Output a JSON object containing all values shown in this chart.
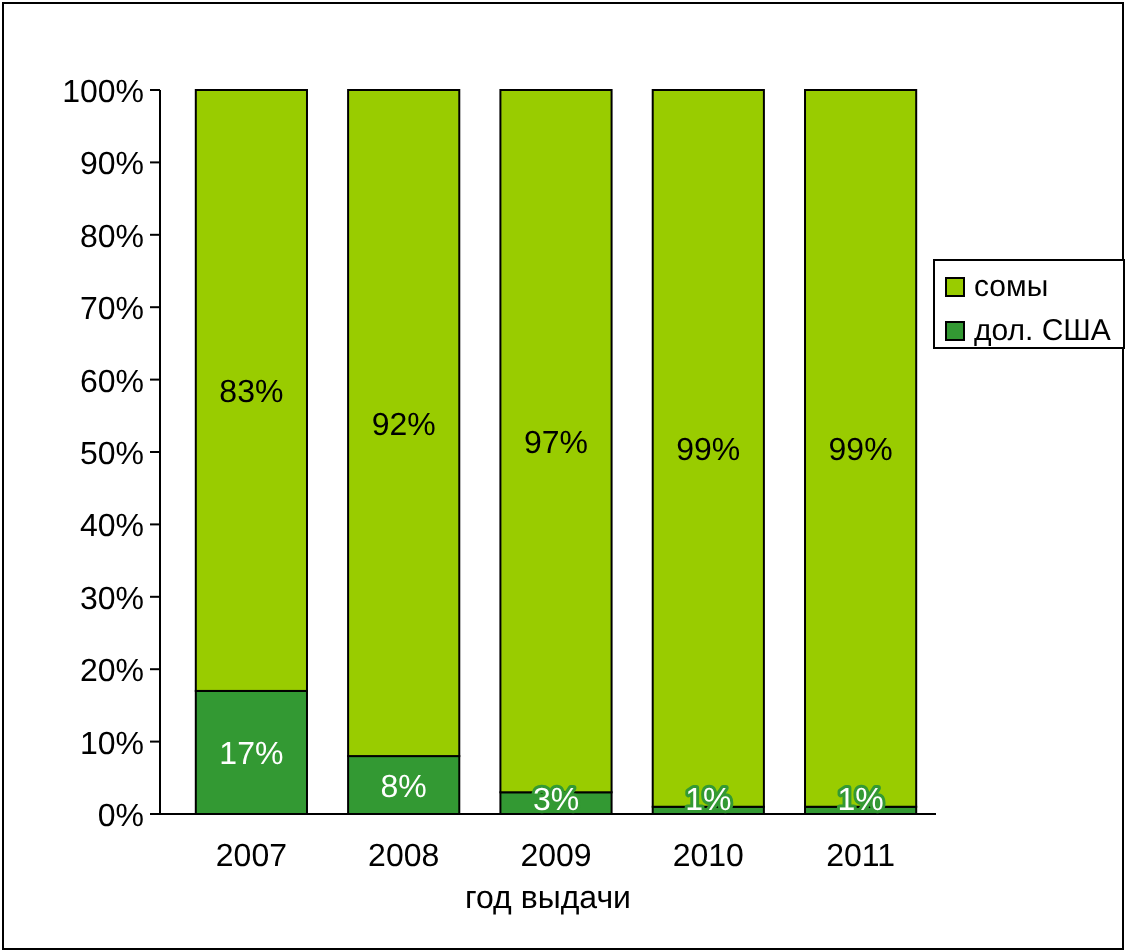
{
  "chart_data": {
    "type": "bar",
    "stacked": true,
    "xlabel": "год выдачи",
    "categories": [
      "2007",
      "2008",
      "2009",
      "2010",
      "2011"
    ],
    "series": [
      {
        "name": "дол. США",
        "color": "#339933",
        "values": [
          17,
          8,
          3,
          1,
          1
        ],
        "value_labels": [
          "17%",
          "8%",
          "3%",
          "1%",
          "1%"
        ]
      },
      {
        "name": "сомы",
        "color": "#99cc00",
        "values": [
          83,
          92,
          97,
          99,
          99
        ],
        "value_labels": [
          "83%",
          "92%",
          "97%",
          "99%",
          "99%"
        ]
      }
    ],
    "ylim": [
      0,
      100
    ],
    "yticks": [
      {
        "value": 0,
        "label": "0%"
      },
      {
        "value": 10,
        "label": "10%"
      },
      {
        "value": 20,
        "label": "20%"
      },
      {
        "value": 30,
        "label": "30%"
      },
      {
        "value": 40,
        "label": "40%"
      },
      {
        "value": 50,
        "label": "50%"
      },
      {
        "value": 60,
        "label": "60%"
      },
      {
        "value": 70,
        "label": "70%"
      },
      {
        "value": 80,
        "label": "80%"
      },
      {
        "value": 90,
        "label": "90%"
      },
      {
        "value": 100,
        "label": "100%"
      }
    ],
    "grid": false,
    "legend": "right"
  }
}
